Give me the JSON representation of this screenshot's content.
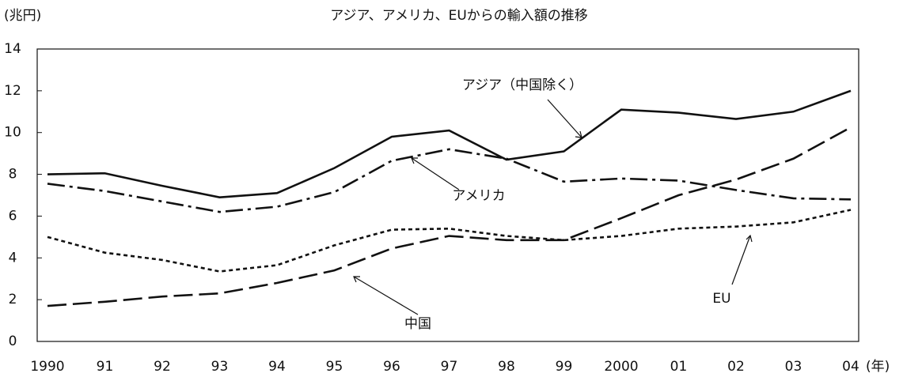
{
  "chart_data": {
    "type": "line",
    "title": "アジア、アメリカ、EUからの輸入額の推移",
    "y_label": "(兆円)",
    "x_label": "(年)",
    "categories": [
      "1990",
      "91",
      "92",
      "93",
      "94",
      "95",
      "96",
      "97",
      "98",
      "99",
      "2000",
      "01",
      "02",
      "03",
      "04"
    ],
    "series": [
      {
        "name": "アジア（中国除く）",
        "color": "#111111",
        "dash": "solid",
        "values": [
          8.0,
          8.05,
          7.45,
          6.9,
          7.1,
          8.3,
          9.8,
          10.1,
          8.7,
          9.1,
          11.1,
          10.95,
          10.65,
          11.0,
          12.0
        ]
      },
      {
        "name": "アメリカ",
        "color": "#111111",
        "dash": "dashdot",
        "values": [
          7.55,
          7.2,
          6.7,
          6.2,
          6.45,
          7.15,
          8.65,
          9.2,
          8.75,
          7.65,
          7.8,
          7.7,
          7.25,
          6.85,
          6.8
        ]
      },
      {
        "name": "EU",
        "color": "#111111",
        "dash": "dotted",
        "values": [
          5.0,
          4.25,
          3.9,
          3.35,
          3.65,
          4.6,
          5.35,
          5.4,
          5.05,
          4.85,
          5.05,
          5.4,
          5.5,
          5.7,
          6.3
        ]
      },
      {
        "name": "中国",
        "color": "#111111",
        "dash": "longdash",
        "values": [
          1.7,
          1.9,
          2.15,
          2.3,
          2.8,
          3.4,
          4.45,
          5.05,
          4.85,
          4.85,
          5.9,
          7.0,
          7.75,
          8.75,
          10.25
        ]
      }
    ],
    "ylim": [
      0,
      14
    ],
    "yticks": [
      0,
      2,
      4,
      6,
      8,
      10,
      12,
      14
    ],
    "grid": false
  }
}
